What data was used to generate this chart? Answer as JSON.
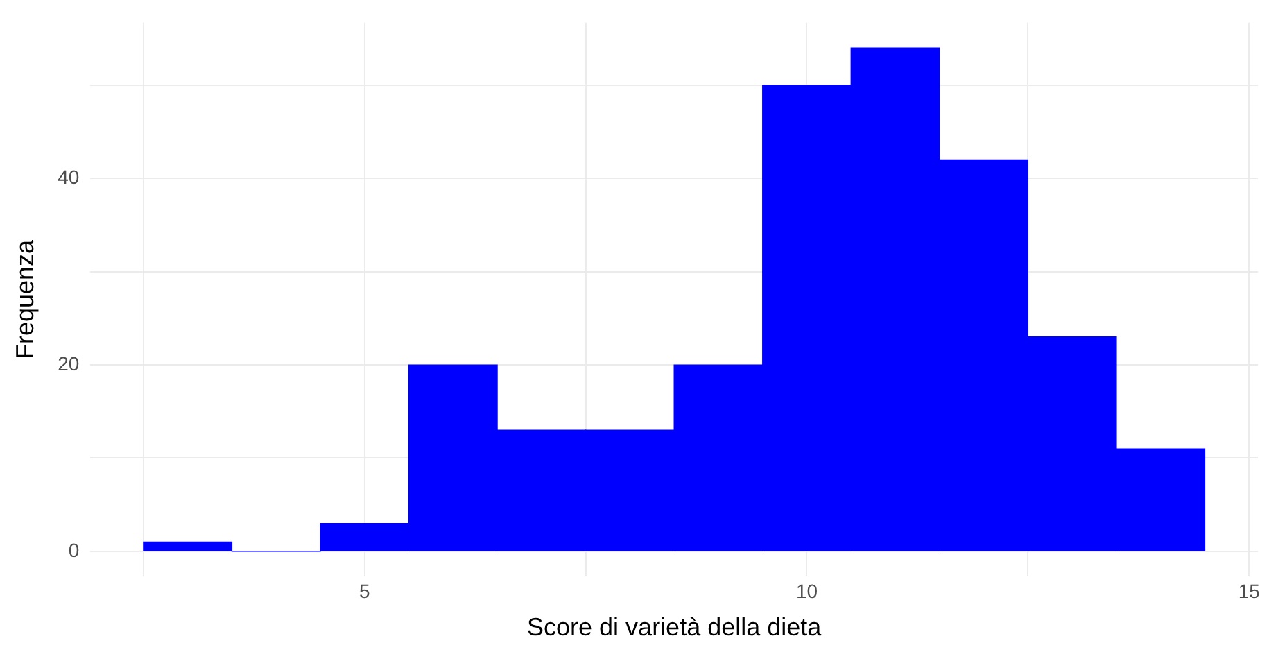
{
  "chart_data": {
    "type": "histogram",
    "xlabel": "Score di varietà della dieta",
    "ylabel": "Frequenza",
    "bins": [
      2.5,
      3.5,
      4.5,
      5.5,
      6.5,
      7.5,
      8.5,
      9.5,
      10.5,
      11.5,
      12.5,
      13.5,
      14.5
    ],
    "values": [
      1,
      0,
      3,
      20,
      13,
      13,
      20,
      50,
      54,
      42,
      23,
      11
    ],
    "color": "#0000ff",
    "xlim": [
      1.9,
      15.1
    ],
    "xticks": [
      {
        "value": 2.5,
        "label": null
      },
      5,
      {
        "value": 7.5,
        "label": null
      },
      10,
      {
        "value": 12.5,
        "label": null
      },
      15
    ],
    "ylim": [
      -2.7,
      56.7
    ],
    "yticks": [
      {
        "value": 0,
        "label": "0"
      },
      {
        "value": 10,
        "label": null
      },
      20,
      {
        "value": 30,
        "label": null
      },
      40,
      {
        "value": 50,
        "label": null
      }
    ],
    "grid": true,
    "legend": false
  }
}
